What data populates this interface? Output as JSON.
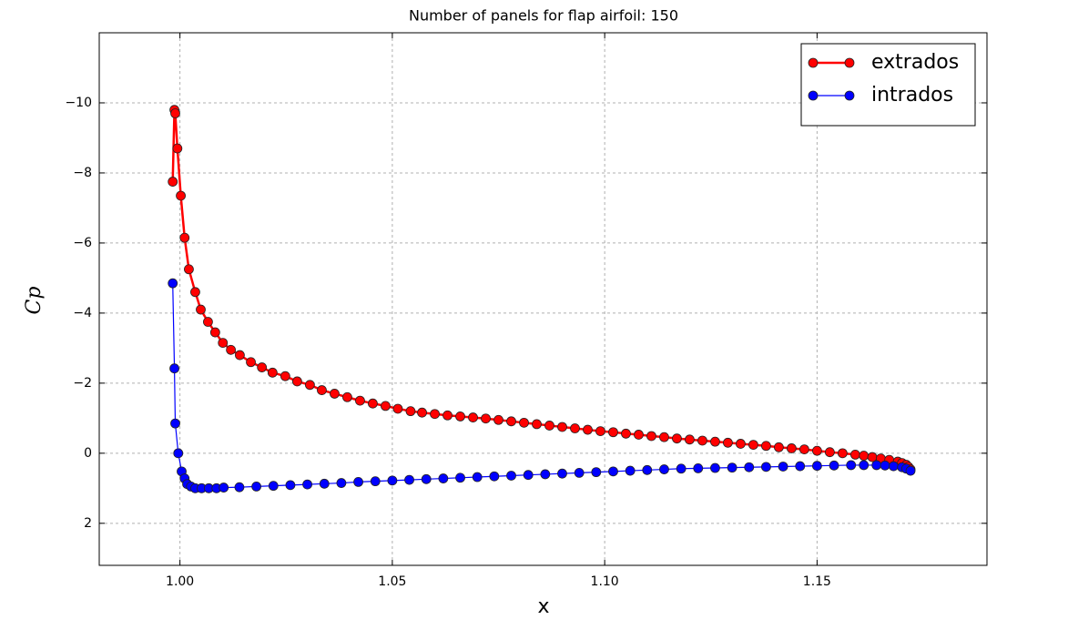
{
  "chart_data": {
    "type": "line",
    "title": "Number of panels for flap airfoil: 150",
    "xlabel": "x",
    "ylabel": "Cp",
    "xlim": [
      0.981,
      1.19
    ],
    "ylim": [
      3.2,
      -12
    ],
    "xticks": [
      {
        "value": 1,
        "label": "1.00"
      },
      1.05,
      {
        "value": 1.1,
        "label": "1.10"
      },
      1.15
    ],
    "yticks": [
      {
        "value": -10,
        "label": "−10"
      },
      {
        "value": -8,
        "label": "−8"
      },
      {
        "value": -6,
        "label": "−6"
      },
      {
        "value": -4,
        "label": "−4"
      },
      {
        "value": -2,
        "label": "−2"
      },
      0,
      2
    ],
    "grid": true,
    "legend": "upper right",
    "series": [
      {
        "name": "extrados",
        "color": "#ff0000",
        "line_width": 2.5,
        "x": [
          0.9983,
          0.9987,
          0.9989,
          0.9994,
          1.0002,
          1.0011,
          1.0021,
          1.0036,
          1.0049,
          1.0066,
          1.0083,
          1.0101,
          1.012,
          1.0141,
          1.0167,
          1.0193,
          1.0218,
          1.0248,
          1.0276,
          1.0306,
          1.0334,
          1.0364,
          1.0394,
          1.0424,
          1.0454,
          1.0484,
          1.0513,
          1.0543,
          1.057,
          1.06,
          1.063,
          1.066,
          1.069,
          1.072,
          1.075,
          1.078,
          1.081,
          1.084,
          1.087,
          1.09,
          1.093,
          1.096,
          1.099,
          1.102,
          1.105,
          1.108,
          1.111,
          1.114,
          1.117,
          1.12,
          1.123,
          1.126,
          1.129,
          1.132,
          1.135,
          1.138,
          1.141,
          1.144,
          1.147,
          1.15,
          1.153,
          1.156,
          1.159,
          1.161,
          1.163,
          1.165,
          1.167,
          1.169,
          1.17,
          1.171,
          1.1715,
          1.172
        ],
        "values": [
          -7.75,
          -9.8,
          -9.7,
          -8.7,
          -7.35,
          -6.15,
          -5.25,
          -4.6,
          -4.1,
          -3.75,
          -3.45,
          -3.15,
          -2.95,
          -2.8,
          -2.6,
          -2.45,
          -2.3,
          -2.2,
          -2.05,
          -1.95,
          -1.8,
          -1.7,
          -1.6,
          -1.5,
          -1.42,
          -1.35,
          -1.27,
          -1.2,
          -1.16,
          -1.12,
          -1.08,
          -1.05,
          -1.02,
          -0.99,
          -0.95,
          -0.91,
          -0.87,
          -0.83,
          -0.79,
          -0.75,
          -0.71,
          -0.67,
          -0.63,
          -0.6,
          -0.56,
          -0.53,
          -0.49,
          -0.46,
          -0.42,
          -0.39,
          -0.36,
          -0.33,
          -0.3,
          -0.27,
          -0.24,
          -0.21,
          -0.17,
          -0.14,
          -0.11,
          -0.07,
          -0.03,
          0.0,
          0.04,
          0.07,
          0.11,
          0.15,
          0.19,
          0.24,
          0.28,
          0.33,
          0.39,
          0.46
        ]
      },
      {
        "name": "intrados",
        "color": "#0000ff",
        "line_width": 1.2,
        "x": [
          0.9983,
          0.9987,
          0.9989,
          0.9996,
          1.0004,
          1.0011,
          1.0017,
          1.0026,
          1.0036,
          1.0051,
          1.0068,
          1.0086,
          1.0103,
          1.014,
          1.018,
          1.022,
          1.026,
          1.03,
          1.034,
          1.038,
          1.042,
          1.046,
          1.05,
          1.054,
          1.058,
          1.062,
          1.066,
          1.07,
          1.074,
          1.078,
          1.082,
          1.086,
          1.09,
          1.094,
          1.098,
          1.102,
          1.106,
          1.11,
          1.114,
          1.118,
          1.122,
          1.126,
          1.13,
          1.134,
          1.138,
          1.142,
          1.146,
          1.15,
          1.154,
          1.158,
          1.161,
          1.164,
          1.166,
          1.168,
          1.17,
          1.171,
          1.172
        ],
        "values": [
          -4.85,
          -2.42,
          -0.85,
          0.0,
          0.52,
          0.72,
          0.88,
          0.95,
          1.0,
          1.0,
          1.0,
          1.0,
          0.98,
          0.97,
          0.95,
          0.93,
          0.91,
          0.89,
          0.87,
          0.85,
          0.82,
          0.8,
          0.78,
          0.76,
          0.74,
          0.72,
          0.7,
          0.68,
          0.66,
          0.64,
          0.62,
          0.6,
          0.58,
          0.56,
          0.54,
          0.52,
          0.5,
          0.48,
          0.46,
          0.44,
          0.43,
          0.42,
          0.41,
          0.4,
          0.39,
          0.38,
          0.37,
          0.36,
          0.35,
          0.34,
          0.34,
          0.34,
          0.35,
          0.37,
          0.4,
          0.44,
          0.5
        ]
      }
    ]
  }
}
